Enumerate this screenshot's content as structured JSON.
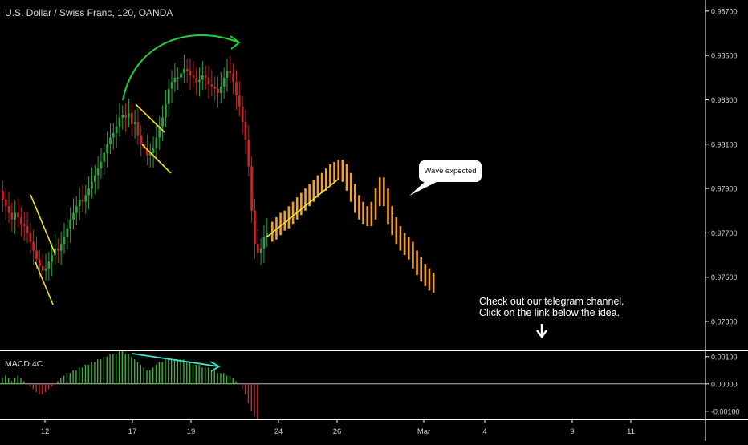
{
  "header": {
    "title": "U.S. Dollar / Swiss Franc, 120, OANDA"
  },
  "annotations": {
    "telegram_line1": "Check out our telegram channel.",
    "telegram_line2": "Click on the link below the idea.",
    "callout": "Wave expected"
  },
  "colors": {
    "background": "#000000",
    "bull": "#2ea043",
    "bear": "#c0282a",
    "projection": "#f0a030",
    "trendline": "#f5e11c",
    "arrow_main": "#22d13a",
    "arrow_macd": "#3ee8c8",
    "macd_pos": "#3fb13a",
    "macd_neg": "#c82a2a",
    "axis_text": "#cfcfcf"
  },
  "chart_data": [
    {
      "type": "candlestick",
      "title": "U.S. Dollar / Swiss Franc, 120, OANDA",
      "price_axis": {
        "ticks": [
          "0.98700",
          "0.98500",
          "0.98300",
          "0.98100",
          "0.97900",
          "0.97700",
          "0.97500",
          "0.97300"
        ],
        "range": [
          0.9717,
          0.9875
        ]
      },
      "time_axis": {
        "ticks": [
          "12",
          "17",
          "19",
          "24",
          "26",
          "Mar",
          "4",
          "9",
          "11"
        ]
      },
      "price_series_close": [
        0.9785,
        0.9782,
        0.9779,
        0.9776,
        0.9779,
        0.9777,
        0.9774,
        0.9773,
        0.977,
        0.9766,
        0.9762,
        0.9758,
        0.9755,
        0.9753,
        0.9754,
        0.9757,
        0.976,
        0.9763,
        0.9762,
        0.9765,
        0.9768,
        0.9772,
        0.9776,
        0.9779,
        0.9782,
        0.9785,
        0.9784,
        0.9787,
        0.979,
        0.9793,
        0.9796,
        0.9799,
        0.9802,
        0.9806,
        0.981,
        0.9813,
        0.9815,
        0.9818,
        0.9822,
        0.9823,
        0.9822,
        0.9824,
        0.9819,
        0.982,
        0.9814,
        0.981,
        0.9808,
        0.9805,
        0.9806,
        0.9808,
        0.9813,
        0.9818,
        0.9822,
        0.9828,
        0.9835,
        0.9838,
        0.984,
        0.984,
        0.9842,
        0.9844,
        0.9843,
        0.9841,
        0.984,
        0.9838,
        0.9839,
        0.9841,
        0.984,
        0.9837,
        0.9836,
        0.9835,
        0.9833,
        0.9836,
        0.984,
        0.9843,
        0.9842,
        0.9838,
        0.9832,
        0.9827,
        0.982,
        0.9812,
        0.98,
        0.978,
        0.9765,
        0.9761,
        0.9763,
        0.9768,
        0.977
      ],
      "projection_close": [
        0.9771,
        0.9773,
        0.9775,
        0.9776,
        0.9778,
        0.978,
        0.9782,
        0.9784,
        0.9786,
        0.9788,
        0.979,
        0.9792,
        0.9793,
        0.9795,
        0.9797,
        0.9798,
        0.9799,
        0.9797,
        0.9793,
        0.9788,
        0.9783,
        0.978,
        0.9778,
        0.9777,
        0.978,
        0.9786,
        0.9791,
        0.9786,
        0.9778,
        0.9773,
        0.9769,
        0.9766,
        0.9764,
        0.9762,
        0.9758,
        0.9755,
        0.9752,
        0.975,
        0.9748,
        0.9747
      ],
      "annotations": [
        "Wave expected",
        "Check out our telegram channel.",
        "Click on the link below the idea."
      ]
    },
    {
      "type": "histogram",
      "title": "MACD 4C",
      "ticks": [
        "0.00100",
        "0.00000",
        "-0.00100"
      ],
      "range": [
        -0.0013,
        0.0012
      ],
      "values": [
        0.0002,
        0.0003,
        0.0002,
        0.0001,
        0.0002,
        0.0003,
        0.0002,
        0.0001,
        0.0,
        -0.0001,
        -0.0002,
        -0.0003,
        -0.0004,
        -0.0004,
        -0.0003,
        -0.0002,
        -0.0001,
        0.0,
        0.0001,
        0.0002,
        0.0003,
        0.0004,
        0.0004,
        0.0005,
        0.0005,
        0.0006,
        0.0006,
        0.0007,
        0.0007,
        0.0008,
        0.0008,
        0.0009,
        0.0009,
        0.001,
        0.001,
        0.0011,
        0.0011,
        0.0011,
        0.0012,
        0.0012,
        0.0011,
        0.0011,
        0.001,
        0.0009,
        0.0008,
        0.0007,
        0.0006,
        0.0005,
        0.0005,
        0.0006,
        0.0007,
        0.0008,
        0.0008,
        0.0009,
        0.0009,
        0.0009,
        0.0009,
        0.0009,
        0.0009,
        0.0009,
        0.0008,
        0.0008,
        0.0007,
        0.0007,
        0.0007,
        0.0006,
        0.0006,
        0.0006,
        0.0005,
        0.0005,
        0.0004,
        0.0004,
        0.0004,
        0.0003,
        0.0003,
        0.0002,
        0.0001,
        0.0,
        -0.0002,
        -0.0004,
        -0.0007,
        -0.001,
        -0.0012,
        -0.0013
      ]
    }
  ]
}
